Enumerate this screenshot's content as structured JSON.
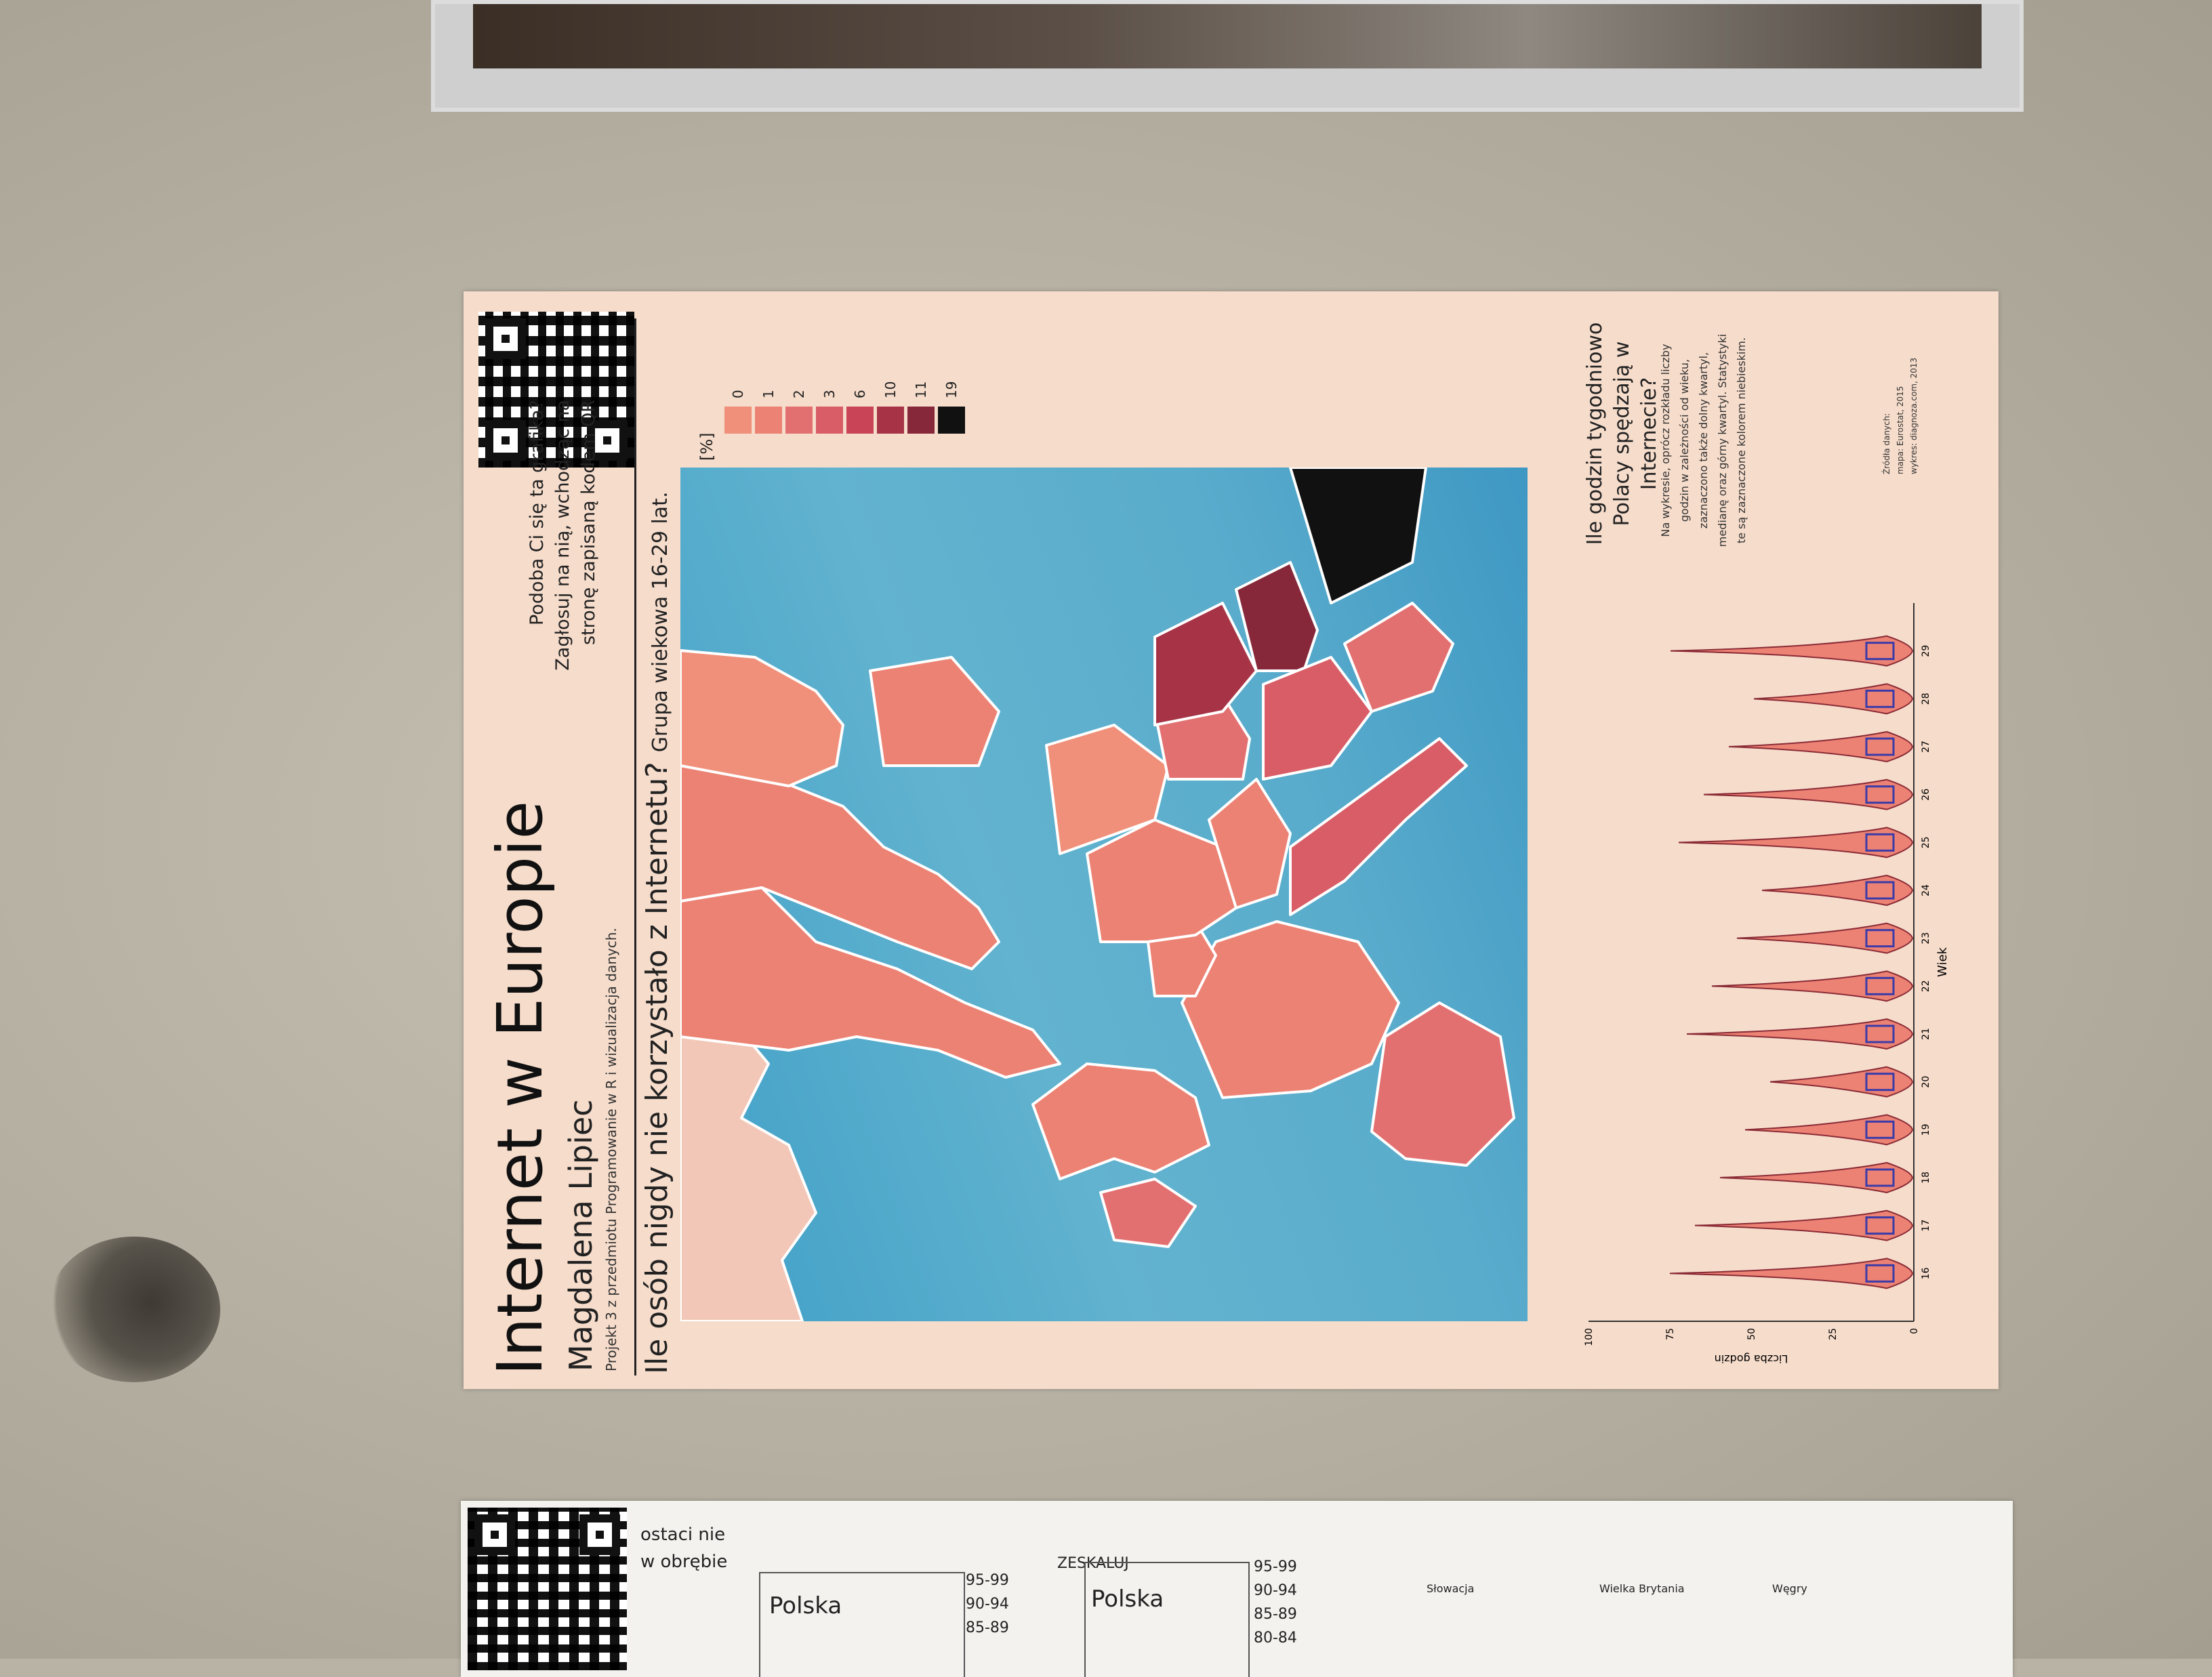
{
  "poster": {
    "title": "Internet w Europie",
    "author": "Magdalena Lipiec",
    "course": "Projekt 3 z przedmiotu Programowanie w R i wizualizacja danych.",
    "vote_lines": [
      "Podoba Ci się ta grafika?",
      "Zagłosuj na nią, wchodząc na",
      "stronę zapisaną kodem QR"
    ],
    "question": "Ile osób nigdy nie korzystało z Internetu?",
    "question_sub": "Grupa wiekowa 16-29 lat.",
    "legend_unit": "[%]",
    "legend": [
      {
        "label": "0",
        "color": "#f0907a"
      },
      {
        "label": "1",
        "color": "#ec8274"
      },
      {
        "label": "2",
        "color": "#e37070"
      },
      {
        "label": "3",
        "color": "#d85d66"
      },
      {
        "label": "6",
        "color": "#c94456"
      },
      {
        "label": "10",
        "color": "#a73446"
      },
      {
        "label": "11",
        "color": "#86283a"
      },
      {
        "label": "19",
        "color": "#111111"
      }
    ],
    "violin_question": "Ile godzin tygodniowo Polacy spędzają w Internecie?",
    "violin_note": "Na wykresie, oprócz rozkładu liczby godzin w zależności od wieku, zaznaczono także dolny kwartyl, medianę oraz górny kwartyl. Statystyki te są zaznaczone kolorem niebieskim.",
    "source_lines": [
      "Źródła danych:",
      "mapa: Eurostat, 2015",
      "wykres: diagnoza.com, 2013"
    ],
    "violin_xlabel": "Wiek",
    "violin_ylabel": "Liczba godzin",
    "violin_yticks": [
      "0",
      "25",
      "50",
      "75",
      "100"
    ],
    "violin_xticks": [
      "16",
      "17",
      "18",
      "19",
      "20",
      "21",
      "22",
      "23",
      "24",
      "25",
      "26",
      "27",
      "28",
      "29"
    ]
  },
  "poster2": {
    "labels": [
      "Polska",
      "Polska",
      "ZESKALUJ",
      "ostaci nie",
      "w obrębie",
      "Słowacja",
      "Wielka Brytania",
      "Węgry"
    ],
    "ticks": [
      "95-99",
      "90-94",
      "85-89",
      "80-84"
    ]
  }
}
